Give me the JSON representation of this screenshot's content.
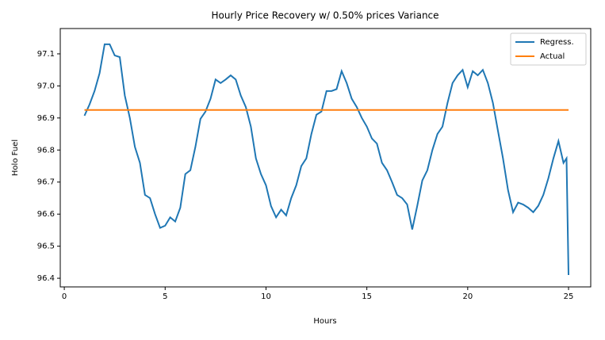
{
  "chart_data": {
    "type": "line",
    "title": "Hourly Price Recovery w/  0.50% prices Variance",
    "x_label": "Hours",
    "y_label": "Holo Fuel",
    "xlim": [
      -0.2,
      26.1
    ],
    "xticks": [
      0,
      5,
      10,
      15,
      20,
      25
    ],
    "ylim": [
      96.373,
      97.179
    ],
    "yticks": [
      96.4,
      96.5,
      96.6,
      96.7,
      96.8,
      96.9,
      {
        "value": 97,
        "label": "97.0"
      },
      97.1
    ],
    "legend": "upper right",
    "series": [
      {
        "name": "Regress.",
        "color": "#1f77b4",
        "x": [
          1.0,
          1.25,
          1.5,
          1.75,
          2.0,
          2.25,
          2.5,
          2.75,
          3.0,
          3.25,
          3.5,
          3.75,
          4.0,
          4.25,
          4.5,
          4.75,
          5.0,
          5.25,
          5.5,
          5.75,
          6.0,
          6.25,
          6.5,
          6.75,
          7.0,
          7.25,
          7.5,
          7.75,
          8.0,
          8.25,
          8.5,
          8.75,
          9.0,
          9.25,
          9.5,
          9.75,
          10.0,
          10.25,
          10.5,
          10.75,
          11.0,
          11.25,
          11.5,
          11.75,
          12.0,
          12.25,
          12.5,
          12.75,
          13.0,
          13.25,
          13.5,
          13.75,
          14.0,
          14.25,
          14.5,
          14.75,
          15.0,
          15.25,
          15.5,
          15.75,
          16.0,
          16.25,
          16.5,
          16.75,
          17.0,
          17.25,
          17.5,
          17.75,
          18.0,
          18.25,
          18.5,
          18.75,
          19.0,
          19.25,
          19.5,
          19.75,
          20.0,
          20.25,
          20.5,
          20.75,
          21.0,
          21.25,
          21.5,
          21.75,
          22.0,
          22.25,
          22.5,
          22.75,
          23.0,
          23.25,
          23.5,
          23.75,
          24.0,
          24.25,
          24.5,
          24.75,
          24.9,
          25.0
        ],
        "values": [
          96.907,
          96.942,
          96.984,
          97.04,
          97.13,
          97.13,
          97.095,
          97.09,
          96.97,
          96.9,
          96.81,
          96.76,
          96.66,
          96.65,
          96.6,
          96.557,
          96.564,
          96.59,
          96.577,
          96.62,
          96.725,
          96.737,
          96.81,
          96.897,
          96.92,
          96.96,
          97.02,
          97.009,
          97.02,
          97.033,
          97.02,
          96.97,
          96.934,
          96.873,
          96.774,
          96.725,
          96.69,
          96.625,
          96.59,
          96.614,
          96.596,
          96.65,
          96.69,
          96.75,
          96.774,
          96.85,
          96.91,
          96.92,
          96.984,
          96.984,
          96.99,
          97.046,
          97.009,
          96.96,
          96.934,
          96.9,
          96.873,
          96.836,
          96.82,
          96.76,
          96.737,
          96.7,
          96.66,
          96.65,
          96.63,
          96.552,
          96.626,
          96.705,
          96.737,
          96.8,
          96.85,
          96.873,
          96.947,
          97.009,
          97.033,
          97.05,
          96.996,
          97.046,
          97.033,
          97.05,
          97.009,
          96.947,
          96.86,
          96.774,
          96.675,
          96.606,
          96.636,
          96.63,
          96.62,
          96.606,
          96.626,
          96.66,
          96.712,
          96.774,
          96.828,
          96.76,
          96.774,
          96.41
        ]
      },
      {
        "name": "Actual",
        "color": "#ff7f0e",
        "x": [
          1,
          25
        ],
        "values": [
          96.925,
          96.925
        ]
      }
    ]
  }
}
